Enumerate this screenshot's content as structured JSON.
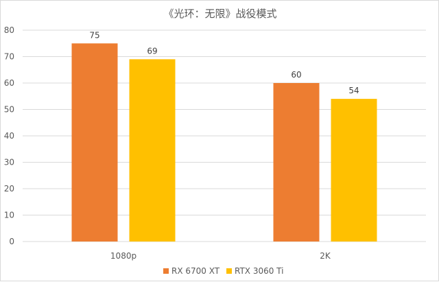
{
  "chart_data": {
    "type": "bar",
    "title": "《光环：无限》战役模式",
    "categories": [
      "1080p",
      "2K"
    ],
    "series": [
      {
        "name": "RX 6700 XT",
        "values": [
          75,
          60
        ],
        "color": "#ED7D31"
      },
      {
        "name": "RTX 3060 Ti",
        "values": [
          69,
          54
        ],
        "color": "#FFC000"
      }
    ],
    "ylim": [
      0,
      80
    ],
    "yticks": [
      0,
      10,
      20,
      30,
      40,
      50,
      60,
      70,
      80
    ],
    "grid": true,
    "legend": "bottom",
    "gridline_color": "#d9d9d9"
  }
}
